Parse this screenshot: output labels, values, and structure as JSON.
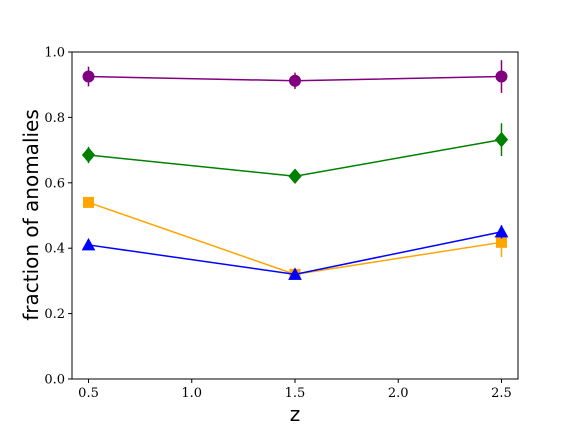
{
  "chart_data": {
    "type": "line",
    "title": "",
    "xlabel": "z",
    "ylabel": "fraction of anomalies",
    "xlim": [
      0.42,
      2.58
    ],
    "ylim": [
      0.0,
      1.0
    ],
    "xticks": [
      "0.5",
      "1.0",
      "1.5",
      "2.0",
      "2.5"
    ],
    "yticks": [
      "0.0",
      "0.2",
      "0.4",
      "0.6",
      "0.8",
      "1.0"
    ],
    "x": [
      0.5,
      1.5,
      2.5
    ],
    "grid": false,
    "legend": "none",
    "series": [
      {
        "color": "#800080",
        "marker": "circle",
        "values": [
          0.925,
          0.912,
          0.925
        ],
        "errors": [
          0.03,
          0.025,
          0.05
        ]
      },
      {
        "color": "#008000",
        "marker": "diamond",
        "values": [
          0.685,
          0.62,
          0.732
        ],
        "errors": [
          0.025,
          0.0,
          0.05
        ]
      },
      {
        "color": "#FFA500",
        "marker": "square",
        "values": [
          0.54,
          0.32,
          0.418
        ],
        "errors": [
          0.0,
          0.0,
          0.045
        ]
      },
      {
        "color": "#0000FF",
        "marker": "triangle",
        "values": [
          0.41,
          0.32,
          0.45
        ],
        "errors": [
          0.0,
          0.0,
          0.02
        ]
      }
    ]
  }
}
